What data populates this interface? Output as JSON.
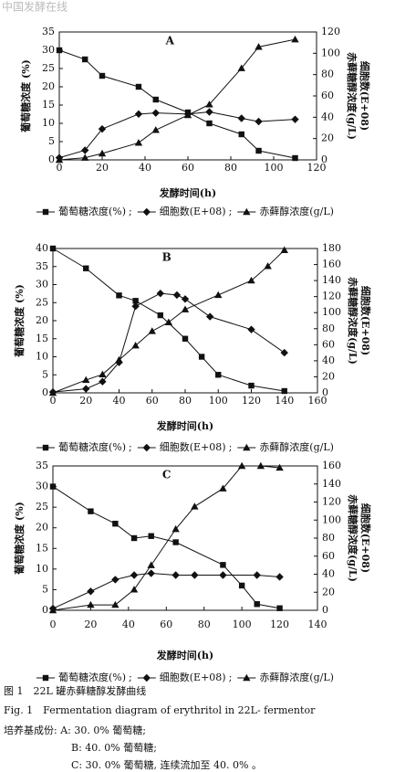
{
  "watermark": "中国发酵在线",
  "chart_data": [
    {
      "type": "line",
      "panel_label": "A",
      "x_label": "发酵时间(h)",
      "y_label": "葡萄糖浓度 (%)",
      "y2_label": "赤藓糖醇浓度(g/L)",
      "y2_label_2": "细胞数(E+08)",
      "xlim": [
        0,
        120
      ],
      "xticks": [
        0,
        20,
        40,
        60,
        80,
        100,
        120
      ],
      "ylim": [
        0,
        35
      ],
      "yticks": [
        0,
        5,
        10,
        15,
        20,
        25,
        30,
        35
      ],
      "y2lim": [
        0,
        120
      ],
      "y2ticks": [
        0,
        20,
        40,
        60,
        80,
        100,
        120
      ],
      "legend_separator": ";",
      "series": [
        {
          "name": "葡萄糖浓度(%)",
          "color": "#111111",
          "marker": "square",
          "axis": "y",
          "x": [
            0,
            12,
            20,
            37,
            45,
            60,
            70,
            85,
            93,
            110
          ],
          "values": [
            30,
            27.5,
            23,
            20,
            16.5,
            13,
            10,
            7,
            2.5,
            0.5
          ]
        },
        {
          "name": "细胞数(E+08)",
          "color": "#111111",
          "marker": "diamond",
          "axis": "y2",
          "x": [
            0,
            12,
            20,
            37,
            45,
            60,
            70,
            85,
            93,
            110
          ],
          "values": [
            2,
            9,
            29,
            43,
            44,
            43,
            45,
            39,
            36,
            38
          ]
        },
        {
          "name": "赤藓醇浓度(g/L)",
          "color": "#111111",
          "marker": "triangle",
          "axis": "y2",
          "x": [
            0,
            12,
            20,
            37,
            45,
            60,
            70,
            85,
            93,
            110
          ],
          "values": [
            0,
            2,
            6,
            16,
            28,
            42,
            52,
            86,
            106,
            113
          ]
        }
      ]
    },
    {
      "type": "line",
      "panel_label": "B",
      "x_label": "发酵时间(h)",
      "y_label": "葡萄糖浓度 (%)",
      "y2_label": "赤藓糖醇浓度(g/L)",
      "y2_label_2": "细胞数(E+08)",
      "xlim": [
        0,
        160
      ],
      "xticks": [
        0,
        20,
        40,
        60,
        80,
        100,
        120,
        140,
        160
      ],
      "ylim": [
        0,
        40
      ],
      "yticks": [
        0,
        5,
        10,
        15,
        20,
        25,
        30,
        35,
        40
      ],
      "y2lim": [
        0,
        180
      ],
      "y2ticks": [
        0,
        20,
        40,
        60,
        80,
        100,
        120,
        140,
        160,
        180
      ],
      "legend_separator": ";",
      "series": [
        {
          "name": "葡萄糖浓度(%)",
          "color": "#111111",
          "marker": "square",
          "axis": "y",
          "x": [
            0,
            20,
            40,
            50,
            65,
            80,
            90,
            100,
            120,
            140
          ],
          "values": [
            40,
            34.5,
            27,
            25.5,
            21.5,
            15,
            10,
            5,
            2,
            0.5
          ]
        },
        {
          "name": "细胞数(E+08)",
          "color": "#111111",
          "marker": "diamond",
          "axis": "y2",
          "x": [
            0,
            20,
            30,
            40,
            50,
            65,
            75,
            80,
            95,
            120,
            140
          ],
          "values": [
            1,
            5,
            14,
            38,
            108,
            124,
            122,
            117,
            95,
            79,
            50
          ]
        },
        {
          "name": "赤藓醇浓度(g/L)",
          "color": "#111111",
          "marker": "triangle",
          "axis": "y2",
          "x": [
            0,
            20,
            30,
            40,
            50,
            60,
            70,
            80,
            100,
            120,
            130,
            140
          ],
          "values": [
            0,
            16,
            23,
            41,
            59,
            77,
            88,
            104,
            122,
            140,
            158,
            178
          ]
        }
      ]
    },
    {
      "type": "line",
      "panel_label": "C",
      "x_label": "发酵时间(h)",
      "y_label": "葡萄糖浓度 (%)",
      "y2_label": "赤藓糖醇浓度(g/L)",
      "y2_label_2": "细胞数(E+08)",
      "xlim": [
        0,
        140
      ],
      "xticks": [
        0,
        20,
        40,
        60,
        80,
        100,
        120,
        140
      ],
      "ylim": [
        0,
        35
      ],
      "yticks": [
        0,
        5,
        10,
        15,
        20,
        25,
        30,
        35
      ],
      "y2lim": [
        0,
        160
      ],
      "y2ticks": [
        0,
        20,
        40,
        60,
        80,
        100,
        120,
        140,
        160
      ],
      "legend_separator": ";",
      "series": [
        {
          "name": "葡萄糖浓度(%)",
          "color": "#111111",
          "marker": "square",
          "axis": "y",
          "x": [
            0,
            20,
            33,
            43,
            52,
            65,
            90,
            100,
            108,
            120
          ],
          "values": [
            30,
            24,
            21,
            17.5,
            18,
            16.5,
            11,
            6,
            1.5,
            0.5
          ]
        },
        {
          "name": "细胞数(E+08)",
          "color": "#111111",
          "marker": "diamond",
          "axis": "y2",
          "x": [
            0,
            20,
            33,
            43,
            52,
            65,
            75,
            90,
            108,
            120
          ],
          "values": [
            2,
            21,
            34,
            39,
            41,
            39,
            39,
            39,
            39,
            37
          ]
        },
        {
          "name": "赤藓醇浓度(g/L)",
          "color": "#111111",
          "marker": "triangle",
          "axis": "y2",
          "x": [
            0,
            20,
            33,
            43,
            52,
            65,
            75,
            90,
            100,
            110,
            120
          ],
          "values": [
            0,
            6,
            6,
            23,
            50,
            90,
            115,
            135,
            160,
            160,
            158
          ]
        }
      ]
    }
  ],
  "caption": {
    "title_cn": "图 1　22L 罐赤藓糖醇发酵曲线",
    "title_en": "Fig. 1　Fermentation diagram of erythritol in 22L- fermentor",
    "medium_a": "培养基成份: A: 30. 0% 葡萄糖;",
    "medium_b": "B: 40. 0% 葡萄糖;",
    "medium_c": "C: 30. 0% 葡萄糖, 连续流加至 40. 0% 。"
  }
}
